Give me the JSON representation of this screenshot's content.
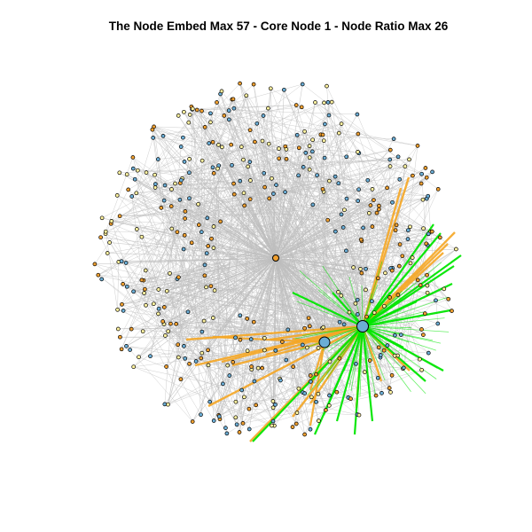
{
  "title": "The Node Embed Max 57 - Core Node 1 - Node Ratio Max 26",
  "graph": {
    "node_count": 440,
    "colors": {
      "edge": "#bebebe",
      "highlight_edge_green": "#00e600",
      "highlight_edge_orange": "#f5a623",
      "node_blue": "#6baed6",
      "node_orange": "#f0a030",
      "node_yellow": "#fff3a0",
      "node_stroke": "#000000"
    }
  }
}
